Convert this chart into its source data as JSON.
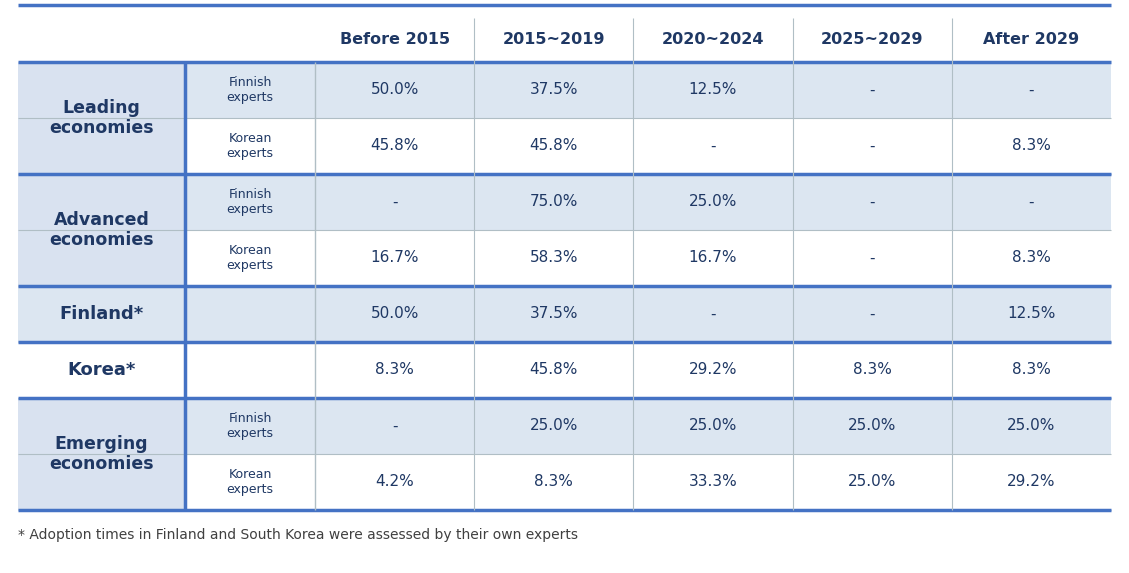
{
  "col_headers": [
    "Before 2015",
    "2015~2019",
    "2020~2024",
    "2025~2029",
    "After 2029"
  ],
  "footnote": "* Adoption times in Finland and South Korea were assessed by their own experts",
  "rows": [
    {
      "group_label": "Leading\neconomies",
      "sub_label": "Finnish\nexperts",
      "values": [
        "50.0%",
        "37.5%",
        "12.5%",
        "-",
        "-"
      ],
      "group_bg": "#d9e2f0",
      "data_bg": "#dce6f1",
      "is_single": false
    },
    {
      "group_label": "",
      "sub_label": "Korean\nexperts",
      "values": [
        "45.8%",
        "45.8%",
        "-",
        "-",
        "8.3%"
      ],
      "group_bg": "#d9e2f0",
      "data_bg": "#ffffff",
      "is_single": false
    },
    {
      "group_label": "Advanced\neconomies",
      "sub_label": "Finnish\nexperts",
      "values": [
        "-",
        "75.0%",
        "25.0%",
        "-",
        "-"
      ],
      "group_bg": "#d9e2f0",
      "data_bg": "#dce6f1",
      "is_single": false
    },
    {
      "group_label": "",
      "sub_label": "Korean\nexperts",
      "values": [
        "16.7%",
        "58.3%",
        "16.7%",
        "-",
        "8.3%"
      ],
      "group_bg": "#d9e2f0",
      "data_bg": "#ffffff",
      "is_single": false
    },
    {
      "group_label": "Finland*",
      "sub_label": "",
      "values": [
        "50.0%",
        "37.5%",
        "-",
        "-",
        "12.5%"
      ],
      "group_bg": "#dce6f1",
      "data_bg": "#dce6f1",
      "is_single": true
    },
    {
      "group_label": "Korea*",
      "sub_label": "",
      "values": [
        "8.3%",
        "45.8%",
        "29.2%",
        "8.3%",
        "8.3%"
      ],
      "group_bg": "#ffffff",
      "data_bg": "#ffffff",
      "is_single": true
    },
    {
      "group_label": "Emerging\neconomies",
      "sub_label": "Finnish\nexperts",
      "values": [
        "-",
        "25.0%",
        "25.0%",
        "25.0%",
        "25.0%"
      ],
      "group_bg": "#d9e2f0",
      "data_bg": "#dce6f1",
      "is_single": false
    },
    {
      "group_label": "",
      "sub_label": "Korean\nexperts",
      "values": [
        "4.2%",
        "8.3%",
        "33.3%",
        "25.0%",
        "29.2%"
      ],
      "group_bg": "#d9e2f0",
      "data_bg": "#ffffff",
      "is_single": false
    }
  ],
  "group_spans": [
    {
      "label": "Leading\neconomies",
      "start": 0,
      "end": 1
    },
    {
      "label": "Advanced\neconomies",
      "start": 2,
      "end": 3
    },
    {
      "label": "Finland*",
      "start": 4,
      "end": 4
    },
    {
      "label": "Korea*",
      "start": 5,
      "end": 5
    },
    {
      "label": "Emerging\neconomies",
      "start": 6,
      "end": 7
    }
  ],
  "thick_border_after_rows": [
    1,
    3,
    4,
    5
  ],
  "thick_color": "#4472c4",
  "thin_color": "#b0bec5",
  "text_color": "#1f3864",
  "footnote_color": "#404040",
  "header_text_color": "#1f3864"
}
